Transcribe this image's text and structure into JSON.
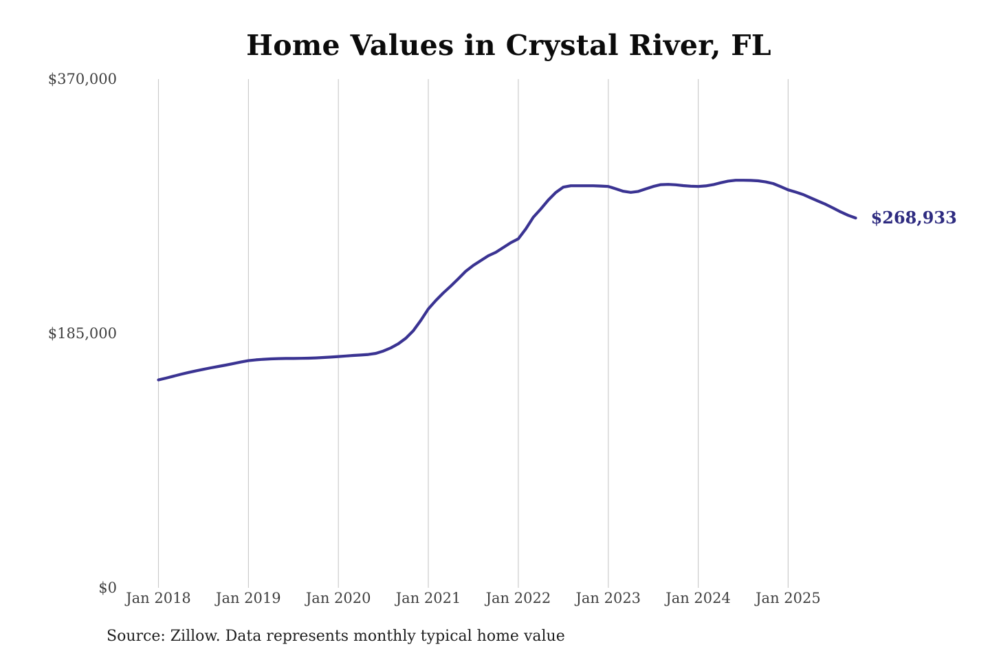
{
  "page": {
    "title": "Home Values in Crystal River, FL",
    "source_note": "Source: Zillow. Data represents monthly typical home value"
  },
  "chart_data": {
    "type": "line",
    "title": "Home Values in Crystal River, FL",
    "xlabel": "",
    "ylabel": "",
    "ylim": [
      0,
      370000
    ],
    "grid": "vertical-only",
    "legend": "none",
    "line_color": "#3a3392",
    "grid_color": "#cbcbcb",
    "end_label": "$268,933",
    "end_value": 268933,
    "y_ticks": [
      {
        "value": 0,
        "label": "$0"
      },
      {
        "value": 185000,
        "label": "$185,000"
      },
      {
        "value": 370000,
        "label": "$370,000"
      }
    ],
    "x_ticks": [
      "Jan 2018",
      "Jan 2019",
      "Jan 2020",
      "Jan 2021",
      "Jan 2022",
      "Jan 2023",
      "Jan 2024",
      "Jan 2025"
    ],
    "series": [
      {
        "name": "Monthly typical home value",
        "months": [
          "2018-01",
          "2018-02",
          "2018-03",
          "2018-04",
          "2018-05",
          "2018-06",
          "2018-07",
          "2018-08",
          "2018-09",
          "2018-10",
          "2018-11",
          "2018-12",
          "2019-01",
          "2019-02",
          "2019-03",
          "2019-04",
          "2019-05",
          "2019-06",
          "2019-07",
          "2019-08",
          "2019-09",
          "2019-10",
          "2019-11",
          "2019-12",
          "2020-01",
          "2020-02",
          "2020-03",
          "2020-04",
          "2020-05",
          "2020-06",
          "2020-07",
          "2020-08",
          "2020-09",
          "2020-10",
          "2020-11",
          "2020-12",
          "2021-01",
          "2021-02",
          "2021-03",
          "2021-04",
          "2021-05",
          "2021-06",
          "2021-07",
          "2021-08",
          "2021-09",
          "2021-10",
          "2021-11",
          "2021-12",
          "2022-01",
          "2022-02",
          "2022-03",
          "2022-04",
          "2022-05",
          "2022-06",
          "2022-07",
          "2022-08",
          "2022-09",
          "2022-10",
          "2022-11",
          "2022-12",
          "2023-01",
          "2023-02",
          "2023-03",
          "2023-04",
          "2023-05",
          "2023-06",
          "2023-07",
          "2023-08",
          "2023-09",
          "2023-10",
          "2023-11",
          "2023-12",
          "2024-01",
          "2024-02",
          "2024-03",
          "2024-04",
          "2024-05",
          "2024-06",
          "2024-07",
          "2024-08",
          "2024-09",
          "2024-10",
          "2024-11",
          "2024-12",
          "2025-01",
          "2025-02",
          "2025-03",
          "2025-04",
          "2025-05",
          "2025-06",
          "2025-07",
          "2025-08",
          "2025-09",
          "2025-10"
        ],
        "values": [
          151200,
          152500,
          153900,
          155300,
          156600,
          157800,
          158900,
          160000,
          161000,
          162000,
          163100,
          164200,
          165200,
          165800,
          166200,
          166500,
          166700,
          166800,
          166800,
          166900,
          167000,
          167200,
          167500,
          167800,
          168200,
          168600,
          169000,
          169300,
          169700,
          170500,
          172200,
          174500,
          177500,
          181500,
          187000,
          194500,
          202800,
          209000,
          214500,
          219500,
          224800,
          230300,
          234500,
          238000,
          241500,
          244000,
          247500,
          251000,
          253800,
          261000,
          269500,
          275500,
          282000,
          287500,
          291400,
          292400,
          292400,
          292400,
          292400,
          292200,
          291900,
          290200,
          288400,
          287600,
          288300,
          290100,
          291900,
          293200,
          293400,
          293100,
          292500,
          292100,
          291900,
          292300,
          293200,
          294600,
          295800,
          296400,
          296400,
          296300,
          296000,
          295200,
          294000,
          291800,
          289400,
          287800,
          286000,
          283600,
          281200,
          278900,
          276200,
          273400,
          270900,
          268933
        ]
      }
    ]
  }
}
